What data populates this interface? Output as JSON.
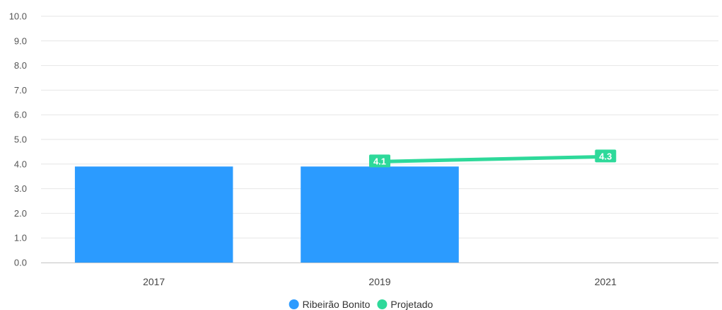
{
  "chart_data": {
    "type": "bar",
    "categories": [
      "2017",
      "2019",
      "2021"
    ],
    "ylim": [
      0,
      10
    ],
    "yticks": [
      "0.0",
      "1.0",
      "2.0",
      "3.0",
      "4.0",
      "5.0",
      "6.0",
      "7.0",
      "8.0",
      "9.0",
      "10.0"
    ],
    "grid": true,
    "legend_position": "bottom-center",
    "series": [
      {
        "name": "Ribeirão Bonito",
        "type": "bar",
        "color": "#2b9bff",
        "values": [
          3.9,
          3.9,
          null
        ]
      },
      {
        "name": "Projetado",
        "type": "line",
        "color": "#2ed99a",
        "values": [
          null,
          4.1,
          4.3
        ],
        "data_labels": [
          "",
          "4.1",
          "4.3"
        ]
      }
    ]
  }
}
